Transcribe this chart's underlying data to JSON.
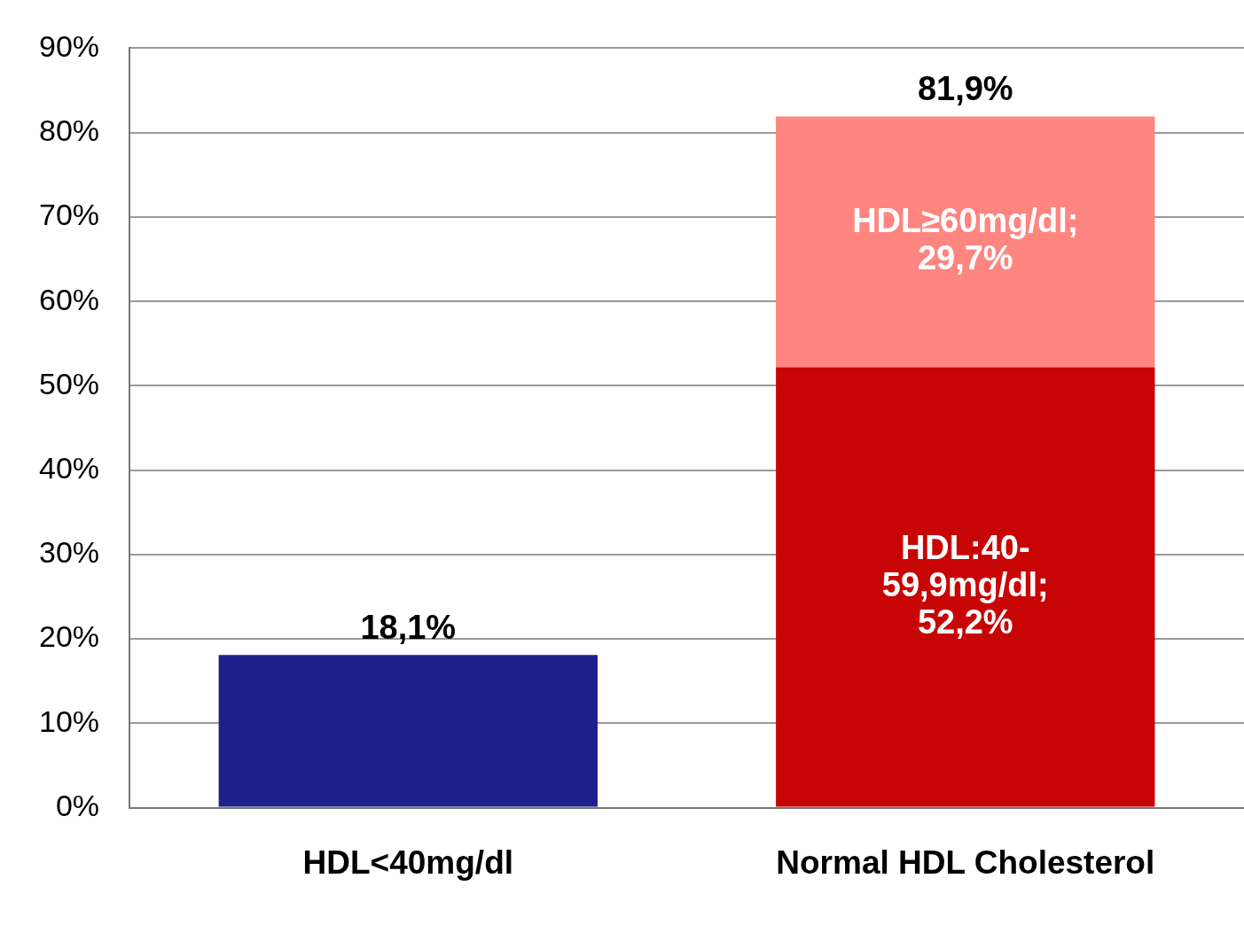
{
  "chart_data": {
    "type": "bar",
    "stacked": true,
    "categories": [
      "HDL<40mg/dl",
      "Normal HDL Cholesterol"
    ],
    "series": [
      {
        "color": "#1f1f8c",
        "values": [
          18.1,
          null
        ]
      },
      {
        "color": "#c80505",
        "values": [
          null,
          52.2
        ],
        "value_labels": [
          null,
          "HDL:40-\n59,9mg/dl;\n52,2%"
        ]
      },
      {
        "color": "#ff8580",
        "values": [
          null,
          29.7
        ],
        "value_labels": [
          null,
          "HDL≥60mg/dl;\n29,7%"
        ]
      }
    ],
    "totals": [
      "18,1%",
      "81,9%"
    ],
    "ylim": [
      0,
      90
    ],
    "yticks": [
      {
        "value": 0,
        "label": "0%"
      },
      {
        "value": 10,
        "label": "10%"
      },
      {
        "value": 20,
        "label": "20%"
      },
      {
        "value": 30,
        "label": "30%"
      },
      {
        "value": 40,
        "label": "40%"
      },
      {
        "value": 50,
        "label": "50%"
      },
      {
        "value": 60,
        "label": "60%"
      },
      {
        "value": 70,
        "label": "70%"
      },
      {
        "value": 80,
        "label": "80%"
      },
      {
        "value": 90,
        "label": "90%"
      }
    ],
    "grid": "y",
    "legend": false
  }
}
